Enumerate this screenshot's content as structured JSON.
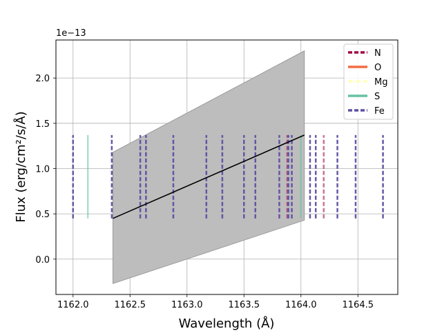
{
  "chart_data": {
    "type": "line",
    "xlabel": "Wavelength (Å)",
    "ylabel": "Flux (erg/cm²/s/Å)",
    "y_offset_label": "1e−13",
    "xlim": [
      1161.85,
      1164.85
    ],
    "ylim": [
      -0.39,
      2.42
    ],
    "xticks": [
      1162.0,
      1162.5,
      1163.0,
      1163.5,
      1164.0,
      1164.5
    ],
    "xtick_labels": [
      "1162.0",
      "1162.5",
      "1163.0",
      "1163.5",
      "1164.0",
      "1164.5"
    ],
    "yticks": [
      0.0,
      0.5,
      1.0,
      1.5,
      2.0
    ],
    "ytick_labels": [
      "0.0",
      "0.5",
      "1.0",
      "1.5",
      "2.0"
    ],
    "grid": true,
    "legend_position": "top-right",
    "model_line": {
      "x": [
        1162.35,
        1164.03
      ],
      "y": [
        0.45,
        1.37
      ],
      "color": "#000000"
    },
    "uncertainty_band": {
      "x": [
        1162.35,
        1164.03
      ],
      "upper": [
        1.18,
        2.3
      ],
      "lower": [
        -0.27,
        0.43
      ],
      "color": "#bdbdbd"
    },
    "line_marker_range": [
      0.45,
      1.37
    ],
    "series": [
      {
        "name": "N",
        "color": "#9e0142",
        "style": "dashed",
        "lines": [
          1163.88,
          1164.2
        ]
      },
      {
        "name": "O",
        "color": "#f46d43",
        "style": "solid",
        "lines": []
      },
      {
        "name": "Mg",
        "color": "#ffffbf",
        "style": "dashdot",
        "lines": []
      },
      {
        "name": "S",
        "color": "#66c2a5",
        "style": "solid",
        "lines": [
          1162.13,
          1164.0
        ]
      },
      {
        "name": "Fe",
        "color": "#5e4fa2",
        "style": "dashed",
        "lines": [
          1162.0,
          1162.34,
          1162.59,
          1162.64,
          1162.88,
          1163.17,
          1163.31,
          1163.5,
          1163.6,
          1163.81,
          1163.89,
          1163.92,
          1164.08,
          1164.13,
          1164.32,
          1164.48,
          1164.72
        ]
      }
    ]
  }
}
